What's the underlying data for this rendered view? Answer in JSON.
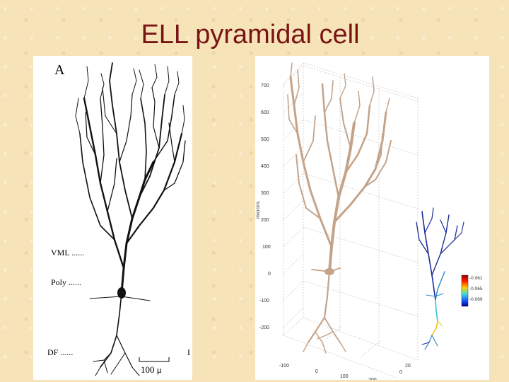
{
  "slide": {
    "title": "ELL pyramidal cell"
  },
  "panel_a": {
    "label": "A",
    "layers": {
      "vml": "VML ......",
      "poly": "Poly ......",
      "df": "DF ......"
    },
    "scale_bar": "100 μ",
    "edge_mark": "I"
  },
  "panel_b": {
    "y_axis_label": "microns",
    "y_ticks": [
      "700",
      "600",
      "500",
      "400",
      "300",
      "200",
      "100",
      "0",
      "-100",
      "-200"
    ],
    "x_ticks": [
      "-100",
      "0",
      "100",
      "200"
    ],
    "z_ticks": [
      "20",
      "0"
    ],
    "colorbar_ticks": [
      "-0.061",
      "-0.065",
      "-0.069"
    ]
  },
  "colors": {
    "title": "#7a1414",
    "neuron_ink": "#111111",
    "neuron_model": "#c4a389"
  }
}
